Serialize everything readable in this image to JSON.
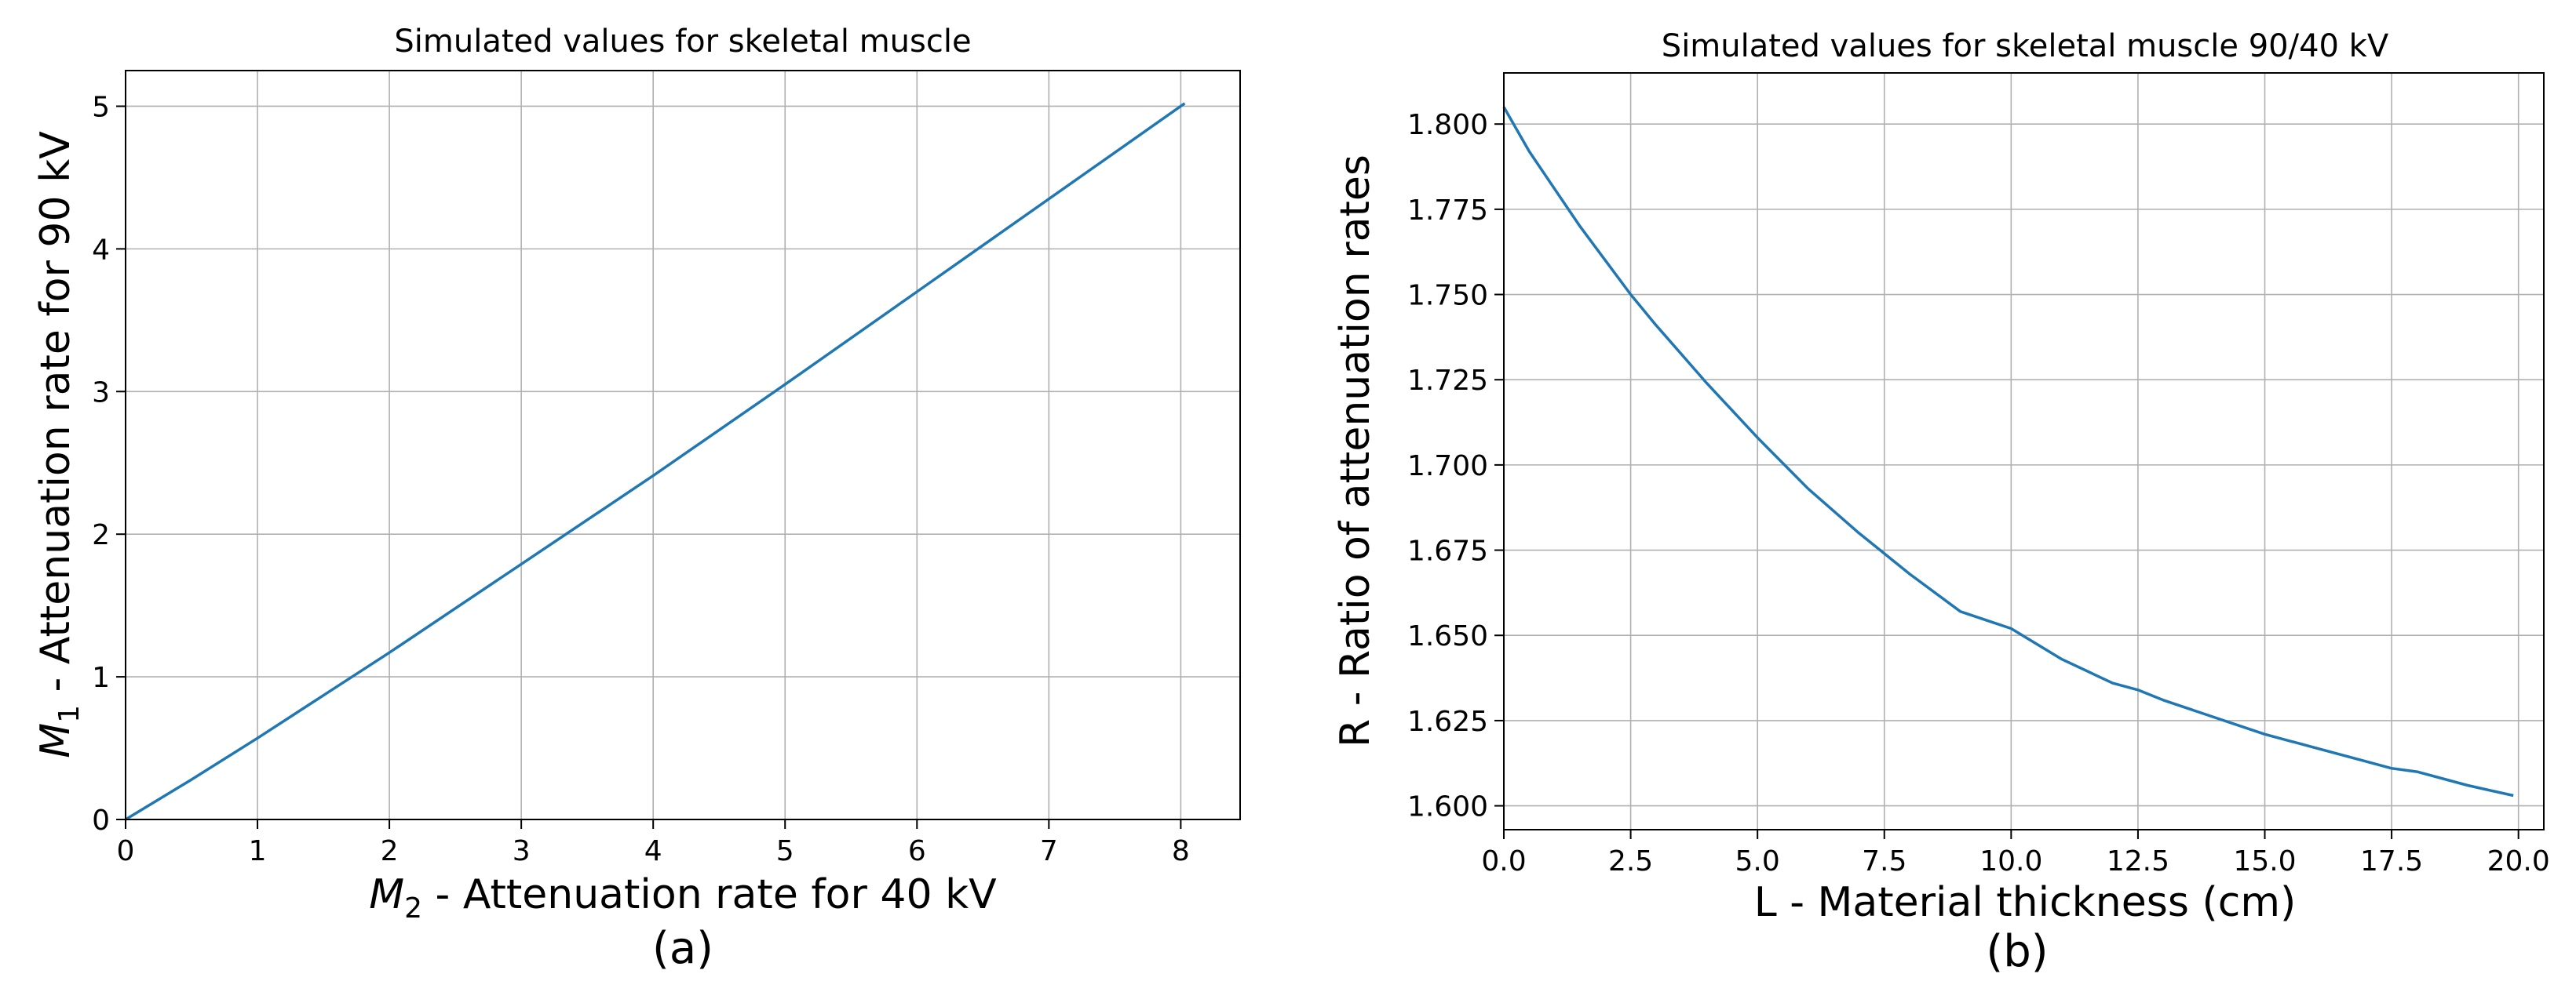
{
  "chart_data": [
    {
      "type": "line",
      "panel_caption": "(a)",
      "title": "Simulated values for skeletal muscle",
      "xlabel_sym": "M",
      "xlabel_sub": "2",
      "xlabel_text": " - Attenuation rate for 40 kV",
      "ylabel_sym": "M",
      "ylabel_sub": "1",
      "ylabel_text": " - Attenuation rate for 90 kV",
      "xlim": [
        0,
        8.45
      ],
      "ylim": [
        0,
        5.25
      ],
      "xticks": [
        0,
        1,
        2,
        3,
        4,
        5,
        6,
        7,
        8
      ],
      "yticks": [
        0,
        1,
        2,
        3,
        4,
        5
      ],
      "xtick_labels": [
        "0",
        "1",
        "2",
        "3",
        "4",
        "5",
        "6",
        "7",
        "8"
      ],
      "ytick_labels": [
        "0",
        "1",
        "2",
        "3",
        "4",
        "5"
      ],
      "grid": true,
      "line_color": "#1f77b4",
      "series": [
        {
          "name": "skeletal muscle",
          "x": [
            0,
            0.5,
            1.0,
            1.5,
            2.0,
            3.0,
            4.0,
            5.0,
            6.0,
            7.0,
            8.03
          ],
          "y": [
            0,
            0.28,
            0.57,
            0.87,
            1.17,
            1.79,
            2.41,
            3.05,
            3.7,
            4.35,
            5.02
          ]
        }
      ]
    },
    {
      "type": "line",
      "panel_caption": "(b)",
      "title": "Simulated values for skeletal muscle 90/40 kV",
      "xlabel_text": "L - Material thickness (cm)",
      "ylabel_text": "R - Ratio of attenuation rates",
      "xlim": [
        0,
        20.5
      ],
      "ylim": [
        1.593,
        1.815
      ],
      "xticks": [
        0,
        2.5,
        5,
        7.5,
        10,
        12.5,
        15,
        17.5,
        20
      ],
      "yticks": [
        1.6,
        1.625,
        1.65,
        1.675,
        1.7,
        1.725,
        1.75,
        1.775,
        1.8
      ],
      "xtick_labels": [
        "0.0",
        "2.5",
        "5.0",
        "7.5",
        "10.0",
        "12.5",
        "15.0",
        "17.5",
        "20.0"
      ],
      "ytick_labels": [
        "1.600",
        "1.625",
        "1.650",
        "1.675",
        "1.700",
        "1.725",
        "1.750",
        "1.775",
        "1.800"
      ],
      "grid": true,
      "line_color": "#1f77b4",
      "series": [
        {
          "name": "ratio",
          "x": [
            0,
            0.5,
            1,
            1.5,
            2,
            2.5,
            3,
            4,
            5,
            6,
            7,
            7.5,
            8,
            9,
            10,
            11,
            12,
            12.5,
            13,
            14,
            15,
            16,
            17,
            17.5,
            18,
            19,
            19.9
          ],
          "y": [
            1.805,
            1.792,
            1.781,
            1.77,
            1.76,
            1.75,
            1.741,
            1.724,
            1.708,
            1.693,
            1.68,
            1.674,
            1.668,
            1.657,
            1.652,
            1.643,
            1.636,
            1.634,
            1.631,
            1.626,
            1.621,
            1.617,
            1.613,
            1.611,
            1.61,
            1.606,
            1.603
          ]
        }
      ]
    }
  ]
}
